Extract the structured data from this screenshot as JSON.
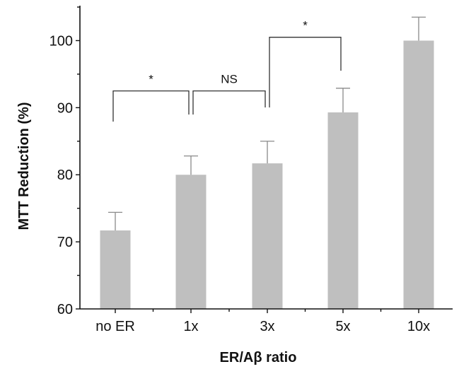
{
  "chart_data": {
    "type": "bar",
    "title": "",
    "xlabel": "ER/Aβ ratio",
    "ylabel": "MTT Reduction (%)",
    "categories": [
      "no ER",
      "1x",
      "3x",
      "5x",
      "10x"
    ],
    "values": [
      71.7,
      80.0,
      81.7,
      89.3,
      100.0
    ],
    "error": [
      2.7,
      2.8,
      3.3,
      3.6,
      3.5
    ],
    "ylim": [
      60,
      105
    ],
    "yticks": [
      60,
      70,
      80,
      90,
      100
    ],
    "bar_color": "#bfbfbf",
    "grid": false,
    "legend": "none",
    "comparisons": [
      {
        "from": 0,
        "to": 1,
        "label": "*",
        "y": 92.5
      },
      {
        "from": 1,
        "to": 2,
        "label": "NS",
        "y": 92.5
      },
      {
        "from": 2,
        "to": 3,
        "label": "*",
        "y": 100.5
      }
    ]
  }
}
